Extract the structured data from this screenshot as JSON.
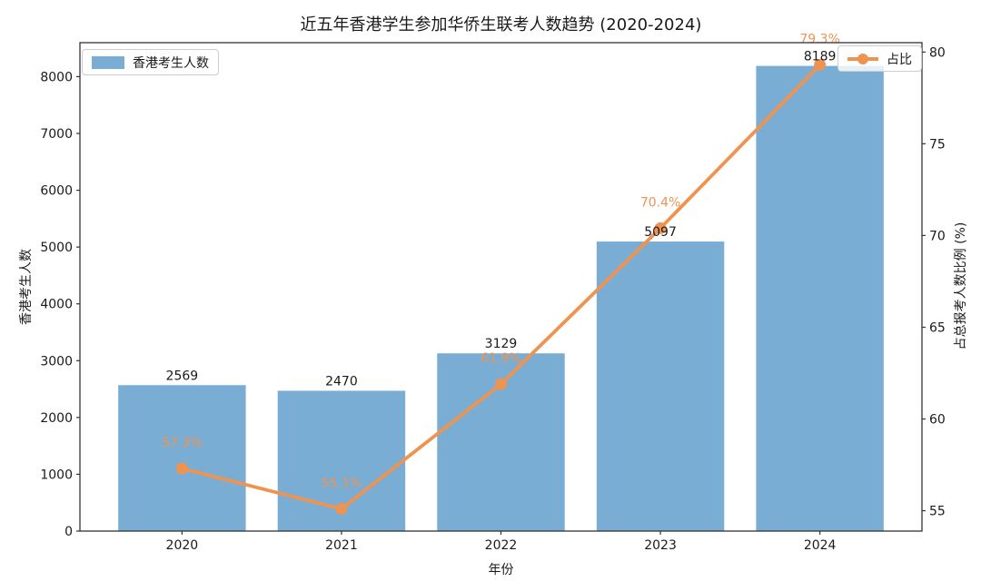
{
  "title": "近五年香港学生参加华侨生联考人数趋势 (2020-2024)",
  "legend": {
    "bars": "香港考生人数",
    "line": "占比"
  },
  "colors": {
    "bar": "#7aadd4",
    "line": "#ef9350",
    "text": "#1a1a1a",
    "spine": "#333333"
  },
  "chart_data": {
    "type": "bar",
    "categories": [
      "2020",
      "2021",
      "2022",
      "2023",
      "2024"
    ],
    "series": [
      {
        "name": "香港考生人数",
        "type": "bar",
        "axis": "left",
        "values": [
          2569,
          2470,
          3129,
          5097,
          8189
        ],
        "labels": [
          "2569",
          "2470",
          "3129",
          "5097",
          "8189"
        ]
      },
      {
        "name": "占比",
        "type": "line",
        "axis": "right",
        "values": [
          57.3,
          55.1,
          61.9,
          70.4,
          79.3
        ],
        "labels": [
          "57.3%",
          "55.1%",
          "61.9%",
          "70.4%",
          "79.3%"
        ]
      }
    ],
    "xlabel": "年份",
    "ylabel_left": "香港考生人数",
    "ylabel_right": "占总报考人数比例 (%)",
    "yticks_left": [
      0,
      1000,
      2000,
      3000,
      4000,
      5000,
      6000,
      7000,
      8000
    ],
    "yticks_right": [
      55,
      60,
      65,
      70,
      75,
      80
    ],
    "ylim_left": [
      0,
      8598
    ],
    "ylim_right": [
      53.89,
      80.51
    ],
    "xlim": [
      -0.64,
      4.64
    ],
    "bar_width": 0.8,
    "grid": false,
    "legend_positions": [
      "upper left",
      "upper right"
    ]
  }
}
